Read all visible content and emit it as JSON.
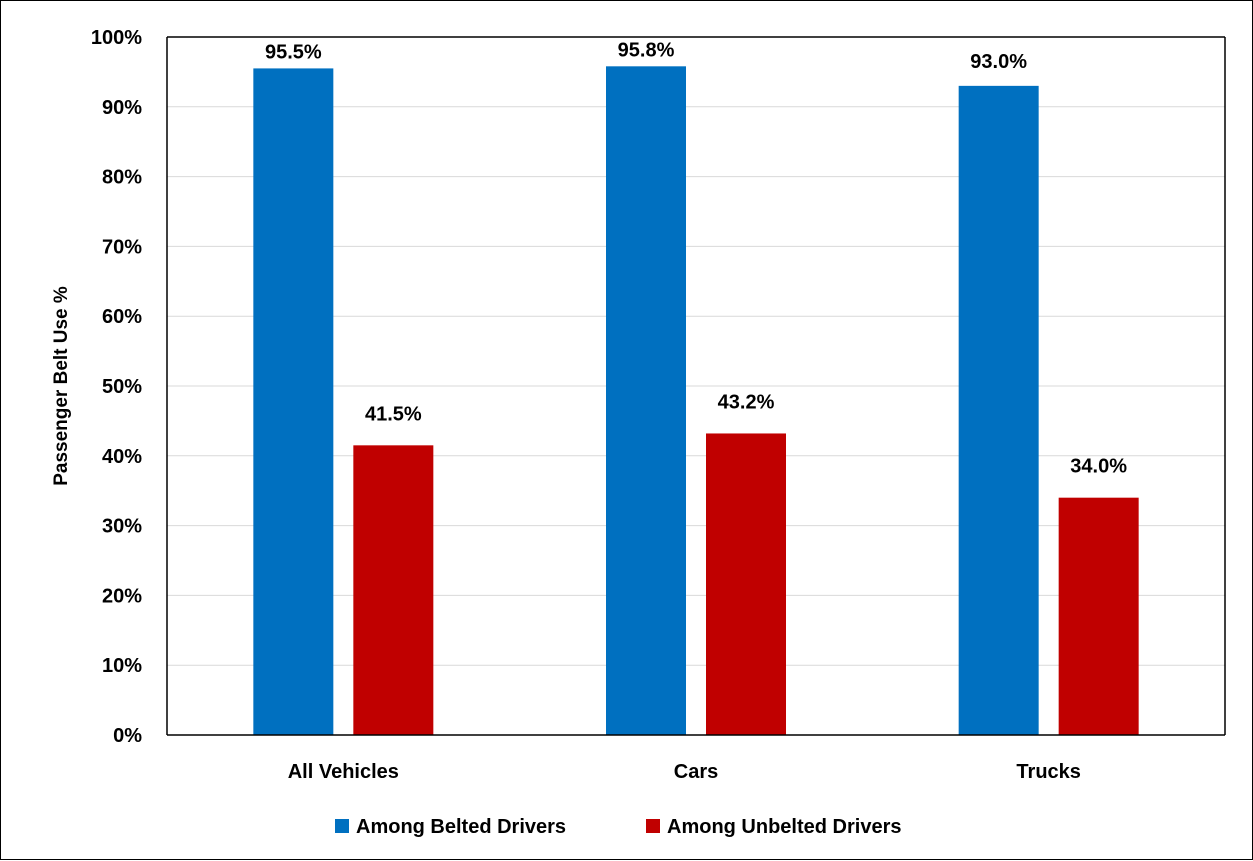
{
  "chart_data": {
    "type": "bar",
    "categories": [
      "All Vehicles",
      "Cars",
      "Trucks"
    ],
    "series": [
      {
        "name": "Among Belted Drivers",
        "values": [
          95.5,
          95.8,
          93.0
        ],
        "labels": [
          "95.5%",
          "95.8%",
          "93.0%"
        ],
        "color": "#0070C0"
      },
      {
        "name": "Among Unbelted Drivers",
        "values": [
          41.5,
          43.2,
          34.0
        ],
        "labels": [
          "41.5%",
          "43.2%",
          "34.0%"
        ],
        "color": "#C00000"
      }
    ],
    "ylabel": "Passenger Belt Use %",
    "ylim": [
      0,
      100
    ],
    "yticks": [
      "0%",
      "10%",
      "20%",
      "30%",
      "40%",
      "50%",
      "60%",
      "70%",
      "80%",
      "90%",
      "100%"
    ],
    "grid": true,
    "legend": "bottom"
  }
}
